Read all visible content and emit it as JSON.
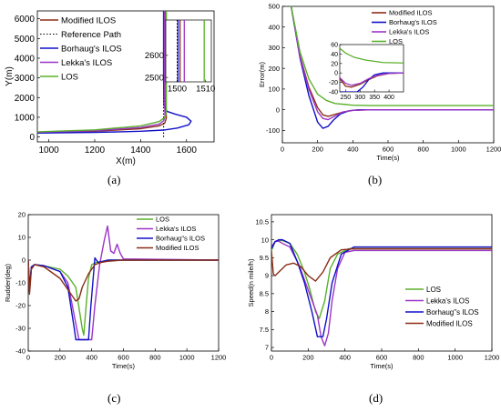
{
  "panel_labels": [
    "(a)",
    "(b)",
    "(c)",
    "(d)"
  ],
  "colors": {
    "modified_ilos": "#8b2e16",
    "reference_path": "#000000",
    "borhaug_ilos": "#1010c8",
    "lekka_ilos": "#9b35c8",
    "los": "#5ab12a"
  },
  "chart_data": [
    {
      "panel": "(a)",
      "type": "line",
      "xlabel": "X(m)",
      "ylabel": "Y(m)",
      "xlim": [
        950,
        1720
      ],
      "ylim": [
        -250,
        6400
      ],
      "xticks": [
        1000,
        1200,
        1400,
        1600
      ],
      "yticks": [
        0,
        1000,
        2000,
        3000,
        4000,
        5000,
        6000
      ],
      "legend": "top-left",
      "series": [
        {
          "name": "Modified ILOS",
          "color": "modified_ilos",
          "dash": "solid",
          "x": [
            950,
            1200,
            1400,
            1480,
            1505,
            1512,
            1510,
            1509,
            1509
          ],
          "y": [
            230,
            290,
            420,
            560,
            700,
            950,
            1500,
            3000,
            6400
          ]
        },
        {
          "name": "Reference Path",
          "color": "reference_path",
          "dash": "dotted",
          "x": [
            1500,
            1500
          ],
          "y": [
            0,
            6400
          ]
        },
        {
          "name": "Borhaug's ILOS",
          "color": "borhaug_ilos",
          "dash": "solid",
          "x": [
            950,
            1200,
            1400,
            1500,
            1560,
            1610,
            1620,
            1600,
            1550,
            1515,
            1502,
            1500,
            1500
          ],
          "y": [
            200,
            230,
            290,
            350,
            450,
            620,
            800,
            1000,
            1160,
            1300,
            1600,
            3000,
            6400
          ]
        },
        {
          "name": "Lekka's ILOS",
          "color": "lekka_ilos",
          "dash": "solid",
          "x": [
            950,
            1200,
            1400,
            1480,
            1500,
            1506,
            1505,
            1503,
            1503
          ],
          "y": [
            240,
            320,
            480,
            650,
            820,
            1000,
            1500,
            3000,
            6400
          ]
        },
        {
          "name": "LOS",
          "color": "los",
          "dash": "solid",
          "x": [
            950,
            1200,
            1400,
            1480,
            1505,
            1512,
            1512,
            1512
          ],
          "y": [
            260,
            360,
            560,
            780,
            980,
            1250,
            3000,
            6400
          ]
        }
      ],
      "inset": {
        "xlim": [
          1496,
          1512
        ],
        "ylim": [
          2480,
          2760
        ],
        "xticks": [
          1500,
          1510
        ],
        "yticks": [
          2500,
          2600
        ],
        "series": [
          {
            "name": "Modified ILOS",
            "x": [
              1501,
              1501
            ],
            "y": [
              2480,
              2760
            ]
          },
          {
            "name": "Reference Path",
            "x": [
              1500,
              1500
            ],
            "y": [
              2480,
              2760
            ]
          },
          {
            "name": "Borhaug's ILOS",
            "x": [
              1500.3,
              1500.3
            ],
            "y": [
              2480,
              2760
            ]
          },
          {
            "name": "Lekka's ILOS",
            "x": [
              1502.5,
              1502.5
            ],
            "y": [
              2480,
              2760
            ]
          },
          {
            "name": "LOS",
            "x": [
              1509.5,
              1509.5
            ],
            "y": [
              2480,
              2760
            ]
          }
        ]
      }
    },
    {
      "panel": "(b)",
      "type": "line",
      "xlabel": "Time(s)",
      "ylabel": "Error(m)",
      "xlim": [
        0,
        1200
      ],
      "ylim": [
        -160,
        500
      ],
      "xticks": [
        0,
        200,
        400,
        600,
        800,
        1000,
        1200
      ],
      "yticks": [
        -100,
        0,
        100,
        200,
        300,
        400,
        500
      ],
      "legend": "top-right",
      "series": [
        {
          "name": "Modified ILOS",
          "color": "modified_ilos",
          "x": [
            50,
            100,
            150,
            200,
            230,
            260,
            300,
            350,
            400,
            500,
            600,
            1200
          ],
          "y": [
            500,
            260,
            110,
            10,
            -25,
            -32,
            -22,
            -10,
            -3,
            0,
            0,
            0
          ]
        },
        {
          "name": "Borhaug's ILOS",
          "color": "borhaug_ilos",
          "x": [
            50,
            100,
            150,
            200,
            230,
            260,
            290,
            330,
            380,
            430,
            500,
            1200
          ],
          "y": [
            500,
            250,
            70,
            -60,
            -90,
            -80,
            -50,
            -20,
            -5,
            0,
            0,
            0
          ]
        },
        {
          "name": "Lekka's ILOS",
          "color": "lekka_ilos",
          "x": [
            50,
            100,
            150,
            200,
            230,
            260,
            300,
            340,
            400,
            500,
            1200
          ],
          "y": [
            500,
            255,
            100,
            -10,
            -42,
            -48,
            -30,
            -12,
            -3,
            0,
            0
          ]
        },
        {
          "name": "LOS",
          "color": "los",
          "x": [
            50,
            100,
            150,
            200,
            250,
            300,
            400,
            500,
            600,
            1200
          ],
          "y": [
            500,
            280,
            150,
            75,
            45,
            30,
            22,
            20,
            20,
            20
          ]
        }
      ],
      "inset": {
        "xlim": [
          230,
          450
        ],
        "ylim": [
          -40,
          60
        ],
        "xticks": [
          250,
          300,
          350,
          400
        ],
        "yticks": [
          -40,
          -20,
          0,
          20,
          40,
          60
        ],
        "series": [
          {
            "name": "Modified ILOS",
            "x": [
              230,
              250,
              270,
              300,
              330,
              360,
              400,
              450
            ],
            "y": [
              -12,
              -28,
              -30,
              -24,
              -14,
              -6,
              -1,
              0
            ]
          },
          {
            "name": "Borhaug's ILOS",
            "x": [
              230,
              260,
              290,
              310,
              330,
              350,
              380,
              450
            ],
            "y": [
              -40,
              -40,
              -40,
              -30,
              -14,
              -4,
              0,
              0
            ]
          },
          {
            "name": "Lekka's ILOS",
            "x": [
              230,
              250,
              270,
              300,
              330,
              360,
              400,
              450
            ],
            "y": [
              -10,
              -22,
              -26,
              -22,
              -12,
              -5,
              -1,
              0
            ]
          },
          {
            "name": "LOS",
            "x": [
              230,
              250,
              280,
              320,
              380,
              450
            ],
            "y": [
              52,
              42,
              33,
              27,
              22,
              21
            ]
          }
        ]
      }
    },
    {
      "panel": "(c)",
      "type": "line",
      "xlabel": "Time(s)",
      "ylabel": "Rudder(deg)",
      "xlim": [
        0,
        1200
      ],
      "ylim": [
        -40,
        20
      ],
      "xticks": [
        0,
        200,
        400,
        600,
        800,
        1000,
        1200
      ],
      "yticks": [
        -40,
        -30,
        -20,
        -10,
        0,
        10,
        20
      ],
      "legend": "top-right",
      "series": [
        {
          "name": "LOS",
          "color": "los",
          "x": [
            0,
            8,
            20,
            40,
            100,
            200,
            250,
            300,
            340,
            350,
            365,
            380,
            400,
            430,
            470,
            520,
            600,
            1200
          ],
          "y": [
            0,
            -12,
            -3,
            -2,
            -2.5,
            -4,
            -7,
            -12,
            -30,
            -33,
            -20,
            -8,
            -2,
            -1,
            -0.5,
            0,
            0,
            0
          ]
        },
        {
          "name": "Lekka's ILOS",
          "color": "lekka_ilos",
          "x": [
            0,
            8,
            20,
            40,
            100,
            200,
            250,
            300,
            320,
            400,
            420,
            450,
            480,
            500,
            520,
            540,
            560,
            580,
            600,
            1200
          ],
          "y": [
            0,
            -14,
            -3,
            -2,
            -2.5,
            -5,
            -10,
            -28,
            -35,
            -35,
            -20,
            -2,
            9,
            15,
            4,
            3,
            7,
            3,
            0.5,
            0
          ]
        },
        {
          "name": "Borhaug\"s ILOS",
          "color": "borhaug_ilos",
          "x": [
            0,
            8,
            20,
            40,
            100,
            200,
            250,
            290,
            300,
            380,
            395,
            420,
            440,
            470,
            500,
            540,
            600,
            1200
          ],
          "y": [
            0,
            -12,
            -3,
            -2,
            -2.5,
            -5,
            -12,
            -30,
            -35,
            -35,
            -20,
            1,
            -1,
            -0.5,
            0,
            0,
            0,
            0
          ]
        },
        {
          "name": "Modified ILOS",
          "color": "modified_ilos",
          "x": [
            0,
            8,
            20,
            40,
            100,
            200,
            250,
            290,
            300,
            320,
            340,
            380,
            420,
            460,
            500,
            600,
            1200
          ],
          "y": [
            0,
            -15,
            -4,
            -2,
            -3,
            -8,
            -13,
            -17,
            -18,
            -17,
            -12,
            -6,
            -2,
            -1,
            -0.5,
            0,
            0
          ]
        }
      ]
    },
    {
      "panel": "(d)",
      "type": "line",
      "xlabel": "Time(s)",
      "ylabel": "Speed(n mile/h)",
      "xlim": [
        0,
        1200
      ],
      "ylim": [
        6.9,
        10.7
      ],
      "xticks": [
        0,
        200,
        400,
        600,
        800,
        1000,
        1200
      ],
      "yticks": [
        7,
        7.5,
        8,
        8.5,
        9,
        9.5,
        10,
        10.5
      ],
      "legend": "bottom-right",
      "series": [
        {
          "name": "LOS",
          "color": "los",
          "x": [
            0,
            20,
            40,
            60,
            100,
            140,
            180,
            210,
            240,
            260,
            290,
            320,
            360,
            420,
            500,
            1200
          ],
          "y": [
            9.7,
            9.95,
            9.98,
            9.98,
            9.9,
            9.6,
            9.1,
            8.6,
            8.0,
            7.8,
            8.3,
            9.2,
            9.6,
            9.75,
            9.75,
            9.75
          ]
        },
        {
          "name": "Lekka's ILOS",
          "color": "lekka_ilos",
          "x": [
            0,
            20,
            40,
            60,
            100,
            150,
            200,
            250,
            270,
            290,
            310,
            330,
            360,
            400,
            450,
            500,
            1200
          ],
          "y": [
            9.8,
            9.95,
            9.96,
            9.9,
            9.8,
            9.3,
            8.6,
            7.9,
            7.3,
            7.05,
            7.4,
            8.3,
            9.2,
            9.65,
            9.7,
            9.7,
            9.7
          ]
        },
        {
          "name": "Borhaug\"s ILOS",
          "color": "borhaug_ilos",
          "x": [
            0,
            20,
            40,
            60,
            100,
            140,
            180,
            220,
            250,
            280,
            300,
            330,
            380,
            450,
            600,
            1200
          ],
          "y": [
            9.75,
            9.95,
            10.0,
            10.0,
            9.9,
            9.4,
            8.8,
            8.0,
            7.3,
            7.3,
            7.8,
            8.8,
            9.6,
            9.8,
            9.8,
            9.8
          ]
        },
        {
          "name": "Modified ILOS",
          "color": "modified_ilos",
          "x": [
            0,
            10,
            20,
            40,
            80,
            120,
            160,
            200,
            240,
            280,
            320,
            380,
            450,
            1200
          ],
          "y": [
            9.7,
            9.05,
            9.0,
            9.1,
            9.3,
            9.35,
            9.25,
            9.0,
            8.85,
            9.1,
            9.5,
            9.72,
            9.75,
            9.75
          ]
        }
      ]
    }
  ]
}
